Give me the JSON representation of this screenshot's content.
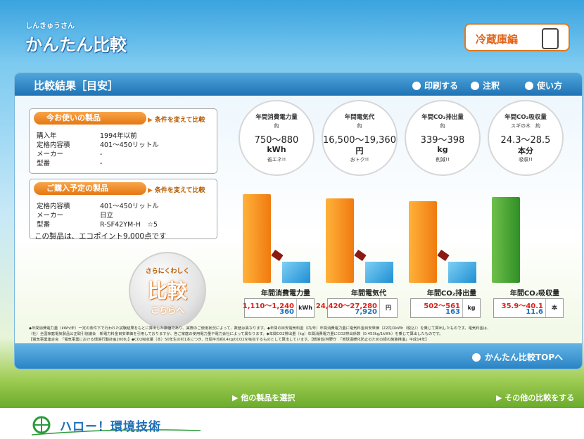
{
  "header": {
    "logo_small": "しんきゅうさん",
    "logo": "かんたん比較",
    "category_button": "冷蔵庫編"
  },
  "panel": {
    "title": "比較結果［目安］",
    "links": [
      "印刷する",
      "注釈",
      "使い方"
    ],
    "current": {
      "title": "今お使いの製品",
      "change": "条件を変えて比較",
      "rows": [
        [
          "購入年",
          "1994年以前"
        ],
        [
          "定格内容積",
          "401～450リットル"
        ],
        [
          "メーカー",
          "-"
        ],
        [
          "型番",
          "-"
        ]
      ]
    },
    "planned": {
      "title": "ご購入予定の製品",
      "change": "条件を変えて比較",
      "rows": [
        [
          "定格内容積",
          "401～450リットル"
        ],
        [
          "メーカー",
          "日立"
        ],
        [
          "型番",
          "R-SF42YM-H　☆5"
        ]
      ],
      "note": "この製品は、エコポイント9,000点です"
    },
    "detail_button": {
      "top": "さらにくわしく",
      "main": "比較",
      "bottom": "こちらへ"
    },
    "metrics": [
      {
        "title": "年間消費電力量",
        "approx": "約",
        "range": "750～880",
        "unit": "kWh",
        "tag": "省エネ!!"
      },
      {
        "title": "年間電気代",
        "approx": "約",
        "range": "16,500～19,360",
        "unit": "円",
        "tag": "おトク!!"
      },
      {
        "title": "年間CO₂排出量",
        "approx": "約",
        "range": "339～398",
        "unit": "kg",
        "tag": "削減!!"
      },
      {
        "title": "年間CO₂吸収量",
        "approx": "スギの木　約",
        "range": "24.3～28.5",
        "unit": "本分",
        "tag": "吸収!!"
      }
    ],
    "comparisons": [
      {
        "label": "年間消費電力量",
        "current": "1,110～1,240",
        "planned": "360",
        "unit": "kWh"
      },
      {
        "label": "年間電気代",
        "current": "24,420～27,280",
        "planned": "7,920",
        "unit": "円"
      },
      {
        "label": "年間CO₂排出量",
        "current": "502～561",
        "planned": "163",
        "unit": "kg"
      },
      {
        "label": "年間CO₂吸収量",
        "current": "35.9～40.1",
        "planned": "11.6",
        "unit": "本"
      }
    ],
    "footnote": [
      "◆年間消費電力量（kWh/年）一定の条件下で行われた試験結果をもとに算出した数値であり、実際のご使用状況によって、数値は異なります。◆年間の目安電気料金（円/年）年間消費電力量に電気料金目安単価（22円/1kWh（税込））を乗じて算出したものです。電気料金は、",
      "（社）全国家庭電気製品公正取引協議会　新電力料金目安単価を引用しておりますが、各ご家庭の使用電力量や電力会社によって異なります。◆年間CO2排出量（kg）年間消費電力量にCO2排出係数（0.453kg/1kWh）を乗じて算出したものです。",
      "【電気事業連合会　「電気事業における環境行動計画2008」】◆CO2吸収量（本）50年生の杉1本につき、年間平均約14kgのCO2を吸収するものとして算出しています。【環境省/林野庁　「地球温暖化防止のための緑の施策推進」平成14年】"
    ],
    "top_link": "かんたん比較TOPへ"
  },
  "nav": {
    "left": "他の製品を選択",
    "right": "その他の比較をする"
  },
  "footer": {
    "logo": "ハロー！環境技術"
  }
}
